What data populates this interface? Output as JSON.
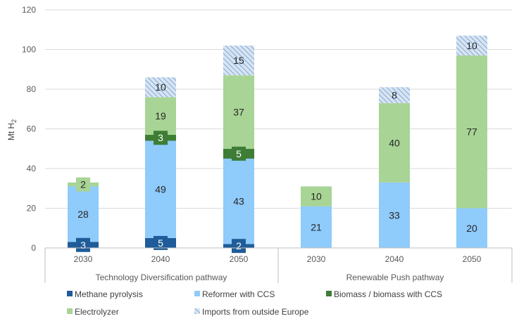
{
  "chart_data": {
    "type": "bar",
    "stacked": true,
    "ylabel_main": "Mt H",
    "ylabel_sub": "2",
    "ylim": [
      0,
      120
    ],
    "yticks": [
      0,
      20,
      40,
      60,
      80,
      100,
      120
    ],
    "grid": true,
    "legend_position": "bottom",
    "groups": [
      {
        "label": "Technology Diversification pathway",
        "categories": [
          "2030",
          "2040",
          "2050"
        ]
      },
      {
        "label": "Renewable Push pathway",
        "categories": [
          "2030",
          "2040",
          "2050"
        ]
      }
    ],
    "categories": [
      "2030",
      "2040",
      "2050",
      "2030",
      "2040",
      "2050"
    ],
    "series": [
      {
        "name": "Methane pyrolysis",
        "color": "#1F5C99",
        "pattern": "solid",
        "values": [
          3,
          5,
          2,
          0,
          0,
          0
        ],
        "labels": [
          "3",
          "5",
          "2",
          "",
          "",
          ""
        ]
      },
      {
        "name": "Reformer with CCS",
        "color": "#8FCBFB",
        "pattern": "solid",
        "values": [
          28,
          49,
          43,
          21,
          33,
          20
        ],
        "labels": [
          "28",
          "49",
          "43",
          "21",
          "33",
          "20"
        ]
      },
      {
        "name": "Biomass / biomass with CCS",
        "color": "#3D7D35",
        "pattern": "solid",
        "values": [
          0,
          3,
          5,
          0,
          0,
          0
        ],
        "labels": [
          "",
          "3",
          "5",
          "",
          "",
          ""
        ]
      },
      {
        "name": "Electrolyzer",
        "color": "#A8D495",
        "pattern": "solid",
        "values": [
          2,
          19,
          37,
          10,
          40,
          77
        ],
        "labels": [
          "2",
          "19",
          "37",
          "10",
          "40",
          "77"
        ]
      },
      {
        "name": "Imports from outside Europe",
        "color": "#D8E4F2",
        "pattern": "hatched",
        "values": [
          0,
          10,
          15,
          0,
          8,
          10
        ],
        "labels": [
          "",
          "10",
          "15",
          "",
          "8",
          "10"
        ]
      }
    ]
  }
}
